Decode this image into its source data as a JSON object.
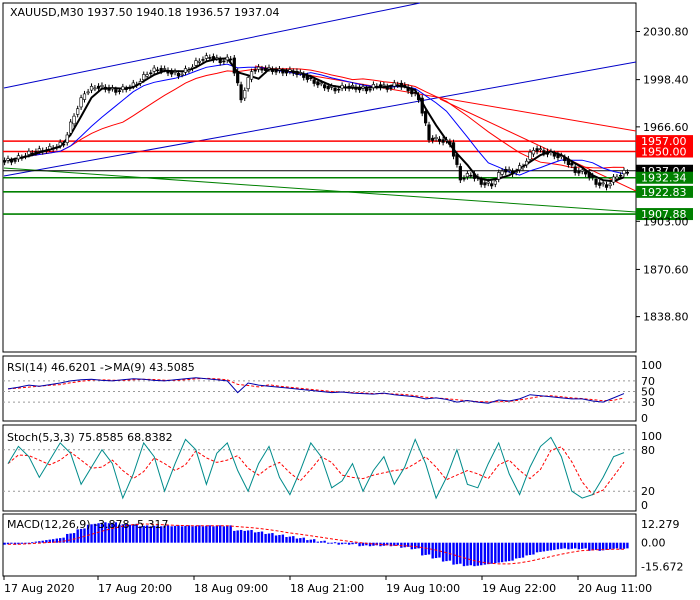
{
  "chart_data": {
    "type": "candlestick",
    "symbol_header": "XAUUSD,M30  1937.50 1940.18 1936.57 1937.04",
    "main": {
      "ylim": [
        1815,
        2050
      ],
      "y_ticks": [
        "2030.80",
        "1998.40",
        "1966.60",
        "1903.00",
        "1870.60",
        "1838.80"
      ],
      "y_tick_values": [
        2030.8,
        1998.4,
        1966.6,
        1903.0,
        1870.6,
        1838.8
      ],
      "levels": [
        {
          "label": "1957.00",
          "value": 1957.0,
          "color": "#ff0000"
        },
        {
          "label": "1950.00",
          "value": 1950.0,
          "color": "#ff0000"
        },
        {
          "label": "1937.04",
          "value": 1937.04,
          "color": "#000000"
        },
        {
          "label": "1932.34",
          "value": 1932.34,
          "color": "#008000"
        },
        {
          "label": "1922.83",
          "value": 1922.83,
          "color": "#008000"
        },
        {
          "label": "1907.88",
          "value": 1907.88,
          "color": "#008000"
        }
      ],
      "close_path": [
        1944,
        1947,
        1950,
        1951,
        1953,
        1956,
        1975,
        1990,
        1994,
        1993,
        1991,
        1993,
        1996,
        2003,
        2006,
        2004,
        2002,
        2006,
        2012,
        2014,
        2011,
        2013,
        1986,
        2005,
        2006,
        2005,
        2004,
        2004,
        2001,
        1997,
        1994,
        1992,
        1994,
        1993,
        1992,
        1995,
        1993,
        1996,
        1992,
        1986,
        1959,
        1958,
        1956,
        1932,
        1935,
        1929,
        1928,
        1938,
        1936,
        1941,
        1952,
        1950,
        1948,
        1945,
        1937,
        1936,
        1929,
        1927,
        1934,
        1937
      ]
    },
    "rsi": {
      "label": "RSI(14) 46.6201  ->MA(9) 43.5085",
      "levels": [
        "100",
        "70",
        "50",
        "30",
        "0"
      ],
      "values": [
        55,
        58,
        62,
        60,
        63,
        66,
        70,
        72,
        73,
        71,
        70,
        72,
        74,
        73,
        71,
        70,
        72,
        74,
        76,
        74,
        72,
        70,
        48,
        66,
        62,
        60,
        58,
        56,
        54,
        52,
        50,
        48,
        49,
        47,
        46,
        45,
        47,
        44,
        42,
        40,
        36,
        38,
        35,
        30,
        33,
        30,
        28,
        34,
        32,
        36,
        44,
        42,
        40,
        38,
        36,
        36,
        32,
        30,
        38,
        46
      ]
    },
    "stoch": {
      "label": "Stoch(5,3,3) 75.8585 68.8382",
      "levels": [
        "100",
        "80",
        "20",
        "0"
      ],
      "values": [
        60,
        85,
        70,
        40,
        65,
        90,
        75,
        30,
        55,
        80,
        60,
        10,
        45,
        90,
        70,
        20,
        60,
        95,
        80,
        30,
        75,
        90,
        50,
        20,
        60,
        85,
        40,
        15,
        50,
        90,
        70,
        25,
        35,
        60,
        20,
        50,
        70,
        30,
        55,
        95,
        60,
        10,
        40,
        80,
        30,
        25,
        60,
        90,
        45,
        15,
        55,
        85,
        98,
        70,
        20,
        10,
        15,
        40,
        70,
        76
      ]
    },
    "macd": {
      "label": "MACD(12,26,9) -3.878  -5.317",
      "levels": [
        "12.279",
        "0.00",
        "-15.672"
      ],
      "values": [
        -1,
        -1,
        0,
        1,
        2,
        3,
        6,
        9,
        12,
        13,
        13,
        12,
        12,
        11,
        11,
        11,
        11,
        11,
        11,
        11,
        11,
        11,
        8,
        8,
        7,
        6,
        5,
        4,
        3,
        2,
        1,
        0,
        -1,
        -1,
        -2,
        -2,
        -2,
        -2,
        -3,
        -4,
        -8,
        -10,
        -12,
        -14,
        -15,
        -15,
        -14,
        -13,
        -12,
        -10,
        -8,
        -6,
        -5,
        -4,
        -4,
        -4,
        -5,
        -5,
        -4,
        -4
      ]
    },
    "x_ticks": [
      "17 Aug 2020",
      "17 Aug 20:00",
      "18 Aug 09:00",
      "18 Aug 21:00",
      "19 Aug 10:00",
      "19 Aug 22:00",
      "20 Aug 11:00"
    ]
  }
}
